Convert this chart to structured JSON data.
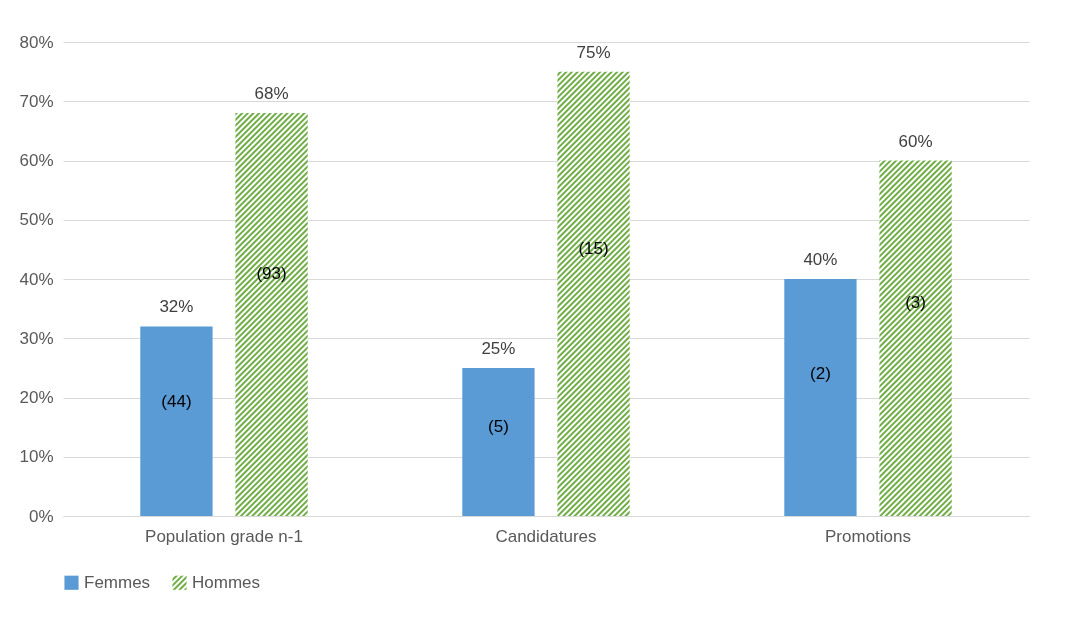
{
  "chart_data": {
    "type": "bar",
    "categories": [
      "Population grade n-1",
      "Candidatures",
      "Promotions"
    ],
    "series": [
      {
        "name": "Femmes",
        "color": "#5b9bd5",
        "values": [
          32,
          25,
          40
        ],
        "value_labels": [
          "32%",
          "25%",
          "40%"
        ]
      },
      {
        "name": "Hommes",
        "color": "#70ad47",
        "values": [
          68,
          75,
          60
        ],
        "value_labels": [
          "68%",
          "75%",
          "60%"
        ]
      }
    ],
    "ylim": [
      0,
      80
    ],
    "yticks": [
      {
        "value": 0,
        "label": "0%"
      },
      {
        "value": 10,
        "label": "10%"
      },
      {
        "value": 20,
        "label": "20%"
      },
      {
        "value": 30,
        "label": "30%"
      },
      {
        "value": 40,
        "label": "40%"
      },
      {
        "value": 50,
        "label": "50%"
      },
      {
        "value": 60,
        "label": "60%"
      },
      {
        "value": 70,
        "label": "70%"
      },
      {
        "value": 80,
        "label": "80%"
      }
    ],
    "annotations": [
      "(44)",
      "(93)",
      "(5)",
      "(15)",
      "(2)",
      "(3)"
    ],
    "grid": "y",
    "legend": "bottom"
  }
}
